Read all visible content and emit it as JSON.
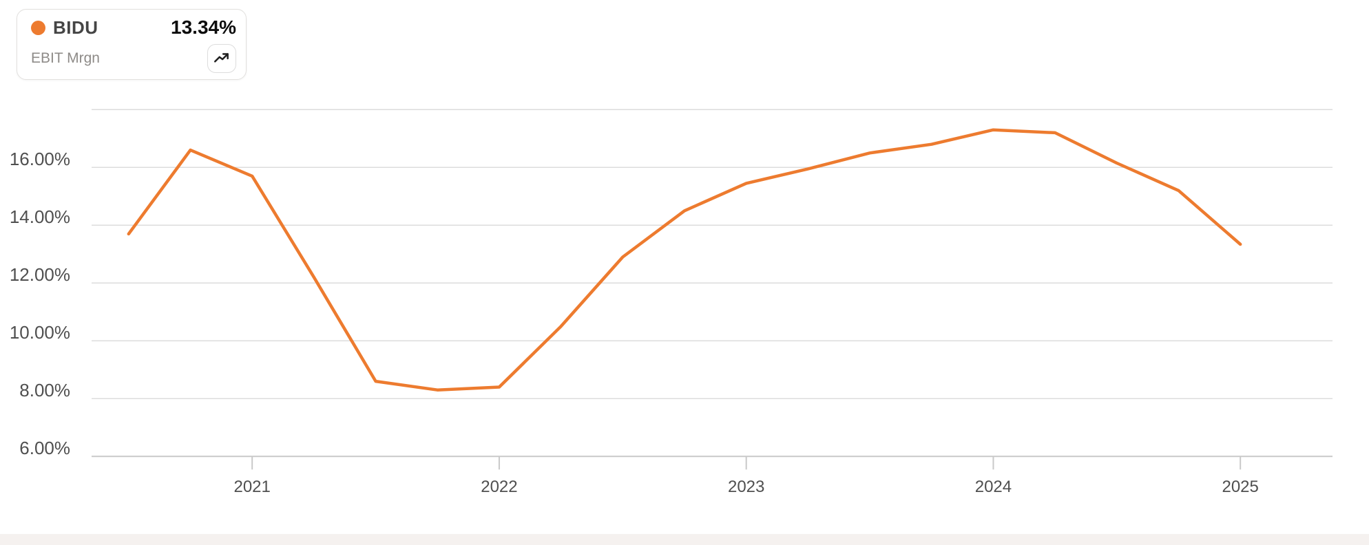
{
  "legend": {
    "ticker": "BIDU",
    "value": "13.34%",
    "metric": "EBIT Mrgn"
  },
  "chart_data": {
    "type": "line",
    "title": "BIDU EBIT Margin",
    "grid": "horizontal",
    "legend_position": "top-left",
    "xlim": [
      2020.35,
      2025.373
    ],
    "ylim": [
      6,
      18
    ],
    "y_gridlines": [
      18,
      16,
      14,
      12,
      10,
      8,
      6
    ],
    "y_ticks": [
      {
        "value": 16,
        "label": "16.00%"
      },
      {
        "value": 14,
        "label": "14.00%"
      },
      {
        "value": 12,
        "label": "12.00%"
      },
      {
        "value": 10,
        "label": "10.00%"
      },
      {
        "value": 8,
        "label": "8.00%"
      },
      {
        "value": 6,
        "label": "6.00%"
      }
    ],
    "x_ticks": [
      {
        "value": 2021,
        "label": "2021"
      },
      {
        "value": 2022,
        "label": "2022"
      },
      {
        "value": 2023,
        "label": "2023"
      },
      {
        "value": 2024,
        "label": "2024"
      },
      {
        "value": 2025,
        "label": "2025"
      }
    ],
    "series": [
      {
        "name": "BIDU",
        "metric": "EBIT Mrgn",
        "unit": "%",
        "color": "#ed7b2f",
        "x": [
          2020.5,
          2020.75,
          2021.0,
          2021.25,
          2021.5,
          2021.75,
          2022.0,
          2022.25,
          2022.5,
          2022.75,
          2023.0,
          2023.25,
          2023.5,
          2023.75,
          2024.0,
          2024.25,
          2024.5,
          2024.75,
          2025.0
        ],
        "values": [
          13.7,
          16.6,
          15.7,
          12.2,
          8.6,
          8.3,
          8.4,
          10.5,
          12.9,
          14.5,
          15.45,
          15.95,
          16.5,
          16.8,
          17.3,
          17.2,
          16.15,
          15.2,
          13.34
        ]
      }
    ]
  },
  "colors": {
    "line": "#ed7b2f",
    "grid": "#dcdcdc",
    "axis": "#c9c9c9",
    "axis_text": "#4f4f4f",
    "card_border": "#e2e0de",
    "footer_strip": "#f5f1ef",
    "ticker_text": "#454545",
    "value_text": "#0d0d0d",
    "metric_text": "#8e8b88"
  }
}
